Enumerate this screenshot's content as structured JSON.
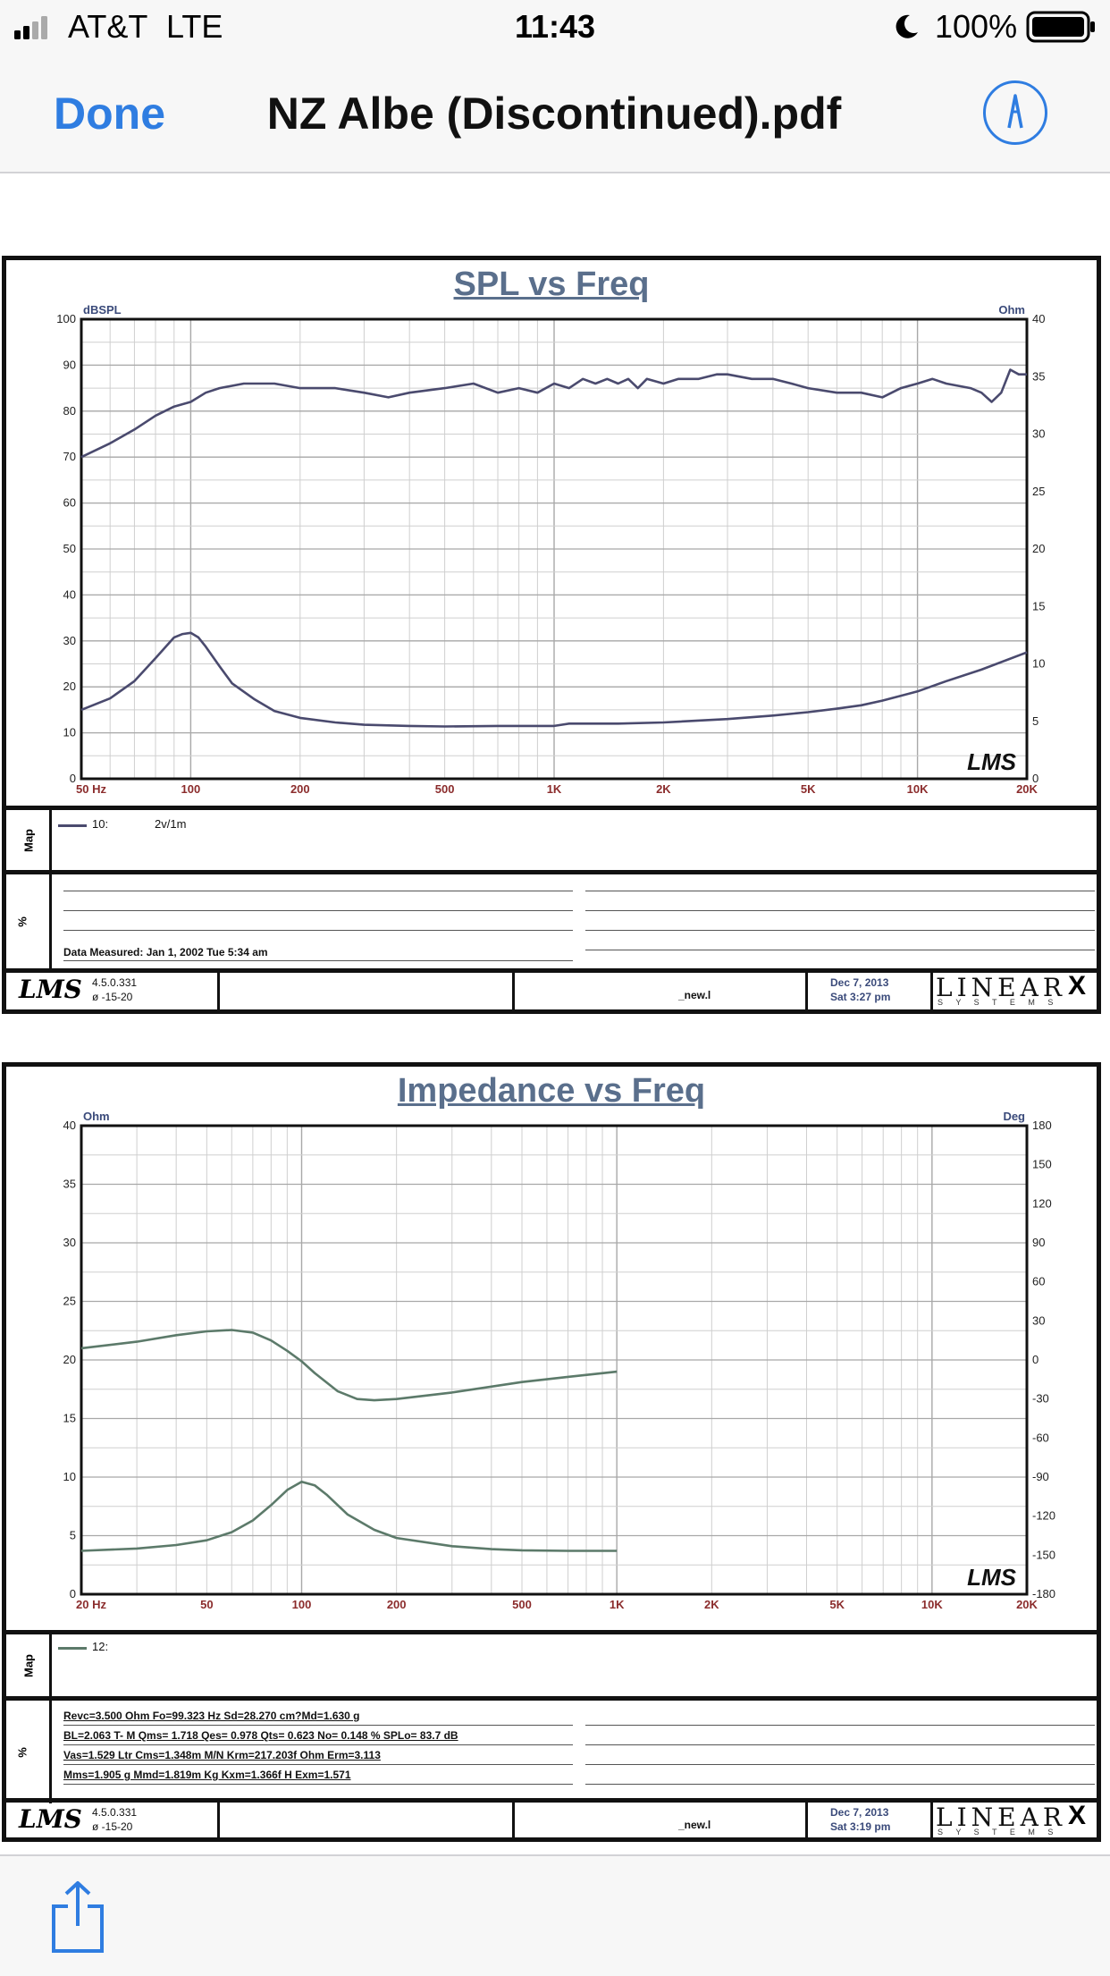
{
  "status_bar": {
    "carrier": "AT&T",
    "network": "LTE",
    "time": "11:43",
    "battery": "100%"
  },
  "nav": {
    "done_label": "Done",
    "title": "NZ Albe (Discontinued).pdf"
  },
  "colors": {
    "accent": "#2f7de1",
    "spl_curve": "#4a4a6e",
    "imp_curve": "#5c7a6a",
    "axis_tick": "#8b2c2c",
    "unit": "#3a4a7a"
  },
  "chart_data": [
    {
      "type": "line",
      "title": "SPL vs Freq",
      "left_unit": "dBSPL",
      "right_unit": "Ohm",
      "x_scale": "log",
      "xlim": [
        50,
        20000
      ],
      "ylim": [
        0,
        100
      ],
      "y2lim": [
        0,
        40
      ],
      "x_ticks": [
        "50 Hz",
        "100",
        "200",
        "500",
        "1K",
        "2K",
        "5K",
        "10K",
        "20K"
      ],
      "y_ticks": [
        0,
        10,
        20,
        30,
        40,
        50,
        60,
        70,
        80,
        90,
        100
      ],
      "y2_ticks": [
        0,
        5,
        10,
        15,
        20,
        25,
        30,
        35,
        40
      ],
      "grid": true,
      "series": [
        {
          "axis": "left",
          "x": [
            50,
            60,
            70,
            80,
            90,
            100,
            110,
            120,
            140,
            170,
            200,
            250,
            300,
            350,
            400,
            500,
            600,
            700,
            800,
            900,
            1000,
            1100,
            1200,
            1300,
            1400,
            1500,
            1600,
            1700,
            1800,
            2000,
            2200,
            2500,
            2800,
            3000,
            3500,
            4000,
            4500,
            5000,
            6000,
            7000,
            8000,
            9000,
            10000,
            11000,
            12000,
            14000,
            15000,
            16000,
            17000,
            18000,
            19000,
            20000
          ],
          "y": [
            70,
            73,
            76,
            79,
            81,
            82,
            84,
            85,
            86,
            86,
            85,
            85,
            84,
            83,
            84,
            85,
            86,
            84,
            85,
            84,
            86,
            85,
            87,
            86,
            87,
            86,
            87,
            85,
            87,
            86,
            87,
            87,
            88,
            88,
            87,
            87,
            86,
            85,
            84,
            84,
            83,
            85,
            86,
            87,
            86,
            85,
            84,
            82,
            84,
            89,
            88,
            88
          ]
        },
        {
          "axis": "right",
          "x": [
            50,
            60,
            70,
            80,
            90,
            95,
            100,
            105,
            110,
            120,
            130,
            150,
            170,
            200,
            250,
            300,
            400,
            500,
            700,
            900,
            1000,
            1100,
            1300,
            1500,
            2000,
            3000,
            4000,
            5000,
            6000,
            7000,
            8000,
            10000,
            12000,
            15000,
            20000
          ],
          "y": [
            6,
            7,
            8.5,
            10.5,
            12.3,
            12.6,
            12.7,
            12.3,
            11.5,
            9.8,
            8.3,
            6.9,
            5.9,
            5.3,
            4.9,
            4.7,
            4.6,
            4.55,
            4.6,
            4.6,
            4.6,
            4.8,
            4.8,
            4.8,
            4.9,
            5.2,
            5.5,
            5.8,
            6.1,
            6.4,
            6.8,
            7.6,
            8.5,
            9.5,
            11
          ]
        }
      ]
    },
    {
      "type": "line",
      "title": "Impedance vs Freq",
      "left_unit": "Ohm",
      "right_unit": "Deg",
      "x_scale": "log",
      "xlim": [
        20,
        20000
      ],
      "ylim": [
        0,
        40
      ],
      "y2lim": [
        -180,
        180
      ],
      "x_ticks": [
        "20  Hz",
        "50",
        "100",
        "200",
        "500",
        "1K",
        "2K",
        "5K",
        "10K",
        "20K"
      ],
      "y_ticks": [
        0,
        5,
        10,
        15,
        20,
        25,
        30,
        35,
        40
      ],
      "y2_ticks": [
        -180,
        -150,
        -120,
        -90,
        -60,
        -30,
        0,
        30,
        60,
        90,
        120,
        150,
        180
      ],
      "grid": true,
      "series": [
        {
          "axis": "left",
          "x": [
            20,
            30,
            40,
            50,
            60,
            70,
            80,
            90,
            100,
            110,
            120,
            140,
            170,
            200,
            300,
            400,
            500,
            700,
            1000
          ],
          "y": [
            3.7,
            3.9,
            4.2,
            4.6,
            5.3,
            6.3,
            7.6,
            8.9,
            9.6,
            9.3,
            8.5,
            6.8,
            5.5,
            4.8,
            4.1,
            3.85,
            3.75,
            3.7,
            3.7
          ]
        },
        {
          "axis": "right",
          "x": [
            20,
            30,
            40,
            50,
            60,
            70,
            80,
            90,
            100,
            110,
            130,
            150,
            170,
            200,
            300,
            500,
            700,
            1000
          ],
          "y": [
            9,
            14,
            19,
            22,
            23,
            21,
            15,
            7,
            -1,
            -10,
            -24,
            -30,
            -31,
            -30,
            -25,
            -17,
            -13,
            -9
          ]
        }
      ]
    }
  ],
  "sheet1": {
    "map_label": "Map",
    "pct_label": "%",
    "legend_id": "10:",
    "legend_text": "2v/1m",
    "measured": "Data Measured: Jan  1, 2002  Tue  5:34 am",
    "footer": {
      "version": "4.5.0.331",
      "sub": "ø   -15-20",
      "file": "_new.l",
      "date": "Dec  7, 2013",
      "day": "Sat  3:27 pm"
    }
  },
  "sheet2": {
    "map_label": "Map",
    "pct_label": "%",
    "legend_id": "12:",
    "params": [
      "Revc=3.500 Ohm  Fo=99.323 Hz  Sd=28.270 cm?Md=1.630 g",
      "BL=2.063 T- M  Qms= 1.718  Qes= 0.978  Qts= 0.623  No= 0.148 %  SPLo= 83.7 dB",
      "Vas=1.529 Ltr  Cms=1.348m M/N  Krm=217.203f Ohm  Erm=3.113",
      "Mms=1.905 g  Mmd=1.819m Kg  Kxm=1.366f H  Exm=1.571"
    ],
    "footer": {
      "version": "4.5.0.331",
      "sub": "ø   -15-20",
      "file": "_new.l",
      "date": "Dec  7, 2013",
      "day": "Sat  3:19 pm"
    }
  },
  "brand": {
    "lms": "LMS",
    "linear": "LINEAR",
    "x": "X",
    "systems": "S Y S T E M S"
  }
}
